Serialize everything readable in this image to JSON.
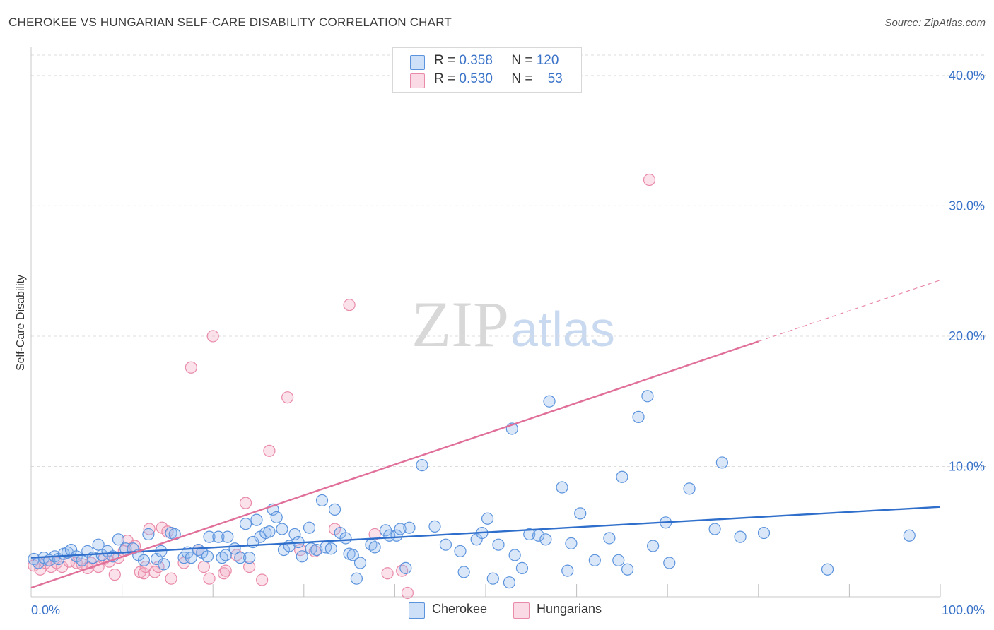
{
  "header": {
    "title": "CHEROKEE VS HUNGARIAN SELF-CARE DISABILITY CORRELATION CHART",
    "source": "Source: ZipAtlas.com"
  },
  "legend_top": {
    "series": [
      {
        "r_label": "R =",
        "r_value": "0.358",
        "n_label": "N =",
        "n_value": "120"
      },
      {
        "r_label": "R =",
        "r_value": "0.530",
        "n_label": "N =",
        "n_value": "53"
      }
    ]
  },
  "legend_bottom": {
    "items": [
      "Cherokee",
      "Hungarians"
    ]
  },
  "colors": {
    "cherokee": "#5b93dd",
    "cherokee_fill": "rgba(147,186,238,0.35)",
    "cherokee_line": "#2f6fcb",
    "hungarians": "#e98aa8",
    "hungarians_fill": "rgba(244,172,196,0.35)",
    "hungarians_line": "#e0709a",
    "axis_text": "#3a73c8",
    "watermark": "ZIPatlas"
  },
  "chart_data": {
    "type": "scatter",
    "title": "CHEROKEE VS HUNGARIAN SELF-CARE DISABILITY CORRELATION CHART",
    "xlabel": "",
    "ylabel": "Self-Care Disability",
    "xlim": [
      0,
      100
    ],
    "ylim": [
      0,
      42
    ],
    "x_tick_labels": [
      "0.0%",
      "100.0%"
    ],
    "y_ticks": [
      10,
      20,
      30,
      40
    ],
    "y_tick_labels": [
      "10.0%",
      "20.0%",
      "30.0%",
      "40.0%"
    ],
    "grid": true,
    "series": [
      {
        "name": "Cherokee",
        "r": 0.358,
        "n": 120,
        "trend": {
          "x0": 0,
          "y0": 3.0,
          "x1": 100,
          "y1": 6.9
        },
        "points": [
          [
            0.3,
            2.9
          ],
          [
            0.8,
            2.6
          ],
          [
            1.4,
            3.0
          ],
          [
            2.0,
            2.8
          ],
          [
            2.6,
            3.1
          ],
          [
            3.0,
            2.9
          ],
          [
            3.6,
            3.3
          ],
          [
            4.0,
            3.4
          ],
          [
            4.4,
            3.6
          ],
          [
            5.0,
            3.1
          ],
          [
            5.6,
            2.8
          ],
          [
            6.2,
            3.5
          ],
          [
            6.8,
            3.0
          ],
          [
            7.4,
            4.0
          ],
          [
            7.8,
            3.2
          ],
          [
            8.4,
            3.5
          ],
          [
            9.0,
            3.1
          ],
          [
            9.6,
            4.4
          ],
          [
            10.4,
            3.7
          ],
          [
            11.2,
            3.7
          ],
          [
            11.8,
            3.2
          ],
          [
            12.4,
            2.8
          ],
          [
            12.9,
            4.8
          ],
          [
            13.8,
            2.9
          ],
          [
            14.3,
            3.5
          ],
          [
            14.6,
            2.5
          ],
          [
            15.4,
            4.9
          ],
          [
            15.8,
            4.8
          ],
          [
            16.8,
            3.0
          ],
          [
            17.2,
            3.4
          ],
          [
            17.6,
            3.0
          ],
          [
            18.4,
            3.6
          ],
          [
            18.8,
            3.4
          ],
          [
            19.4,
            3.1
          ],
          [
            19.6,
            4.6
          ],
          [
            20.6,
            4.6
          ],
          [
            21.0,
            3.0
          ],
          [
            21.4,
            3.2
          ],
          [
            21.6,
            4.6
          ],
          [
            22.4,
            3.7
          ],
          [
            23.0,
            3.0
          ],
          [
            23.6,
            5.6
          ],
          [
            24.0,
            3.0
          ],
          [
            24.4,
            4.2
          ],
          [
            24.8,
            5.9
          ],
          [
            25.2,
            4.6
          ],
          [
            25.8,
            4.9
          ],
          [
            26.2,
            5.0
          ],
          [
            26.6,
            6.7
          ],
          [
            27.0,
            6.1
          ],
          [
            27.6,
            5.2
          ],
          [
            27.8,
            3.6
          ],
          [
            28.4,
            3.9
          ],
          [
            29.0,
            4.8
          ],
          [
            29.4,
            4.2
          ],
          [
            29.8,
            3.1
          ],
          [
            30.6,
            5.3
          ],
          [
            30.8,
            3.7
          ],
          [
            31.4,
            3.6
          ],
          [
            32.0,
            7.4
          ],
          [
            32.4,
            3.8
          ],
          [
            33.0,
            3.7
          ],
          [
            33.4,
            6.7
          ],
          [
            34.0,
            4.9
          ],
          [
            34.6,
            4.5
          ],
          [
            35.0,
            3.3
          ],
          [
            35.4,
            3.2
          ],
          [
            35.8,
            1.4
          ],
          [
            36.2,
            2.6
          ],
          [
            37.4,
            4.0
          ],
          [
            37.8,
            3.8
          ],
          [
            39.0,
            5.1
          ],
          [
            39.4,
            4.7
          ],
          [
            40.2,
            4.7
          ],
          [
            40.6,
            5.2
          ],
          [
            41.2,
            2.2
          ],
          [
            41.6,
            5.3
          ],
          [
            43.0,
            10.1
          ],
          [
            44.4,
            5.4
          ],
          [
            45.6,
            4.0
          ],
          [
            47.2,
            3.5
          ],
          [
            47.6,
            1.9
          ],
          [
            49.0,
            4.4
          ],
          [
            49.6,
            4.9
          ],
          [
            50.2,
            6.0
          ],
          [
            50.8,
            1.4
          ],
          [
            51.4,
            4.0
          ],
          [
            52.6,
            1.1
          ],
          [
            52.9,
            12.9
          ],
          [
            53.2,
            3.2
          ],
          [
            54.0,
            2.2
          ],
          [
            54.8,
            4.8
          ],
          [
            55.8,
            4.7
          ],
          [
            56.6,
            4.4
          ],
          [
            57.0,
            15.0
          ],
          [
            58.4,
            8.4
          ],
          [
            59.0,
            2.0
          ],
          [
            59.4,
            4.1
          ],
          [
            60.4,
            6.4
          ],
          [
            62.0,
            2.8
          ],
          [
            63.6,
            4.5
          ],
          [
            64.6,
            2.8
          ],
          [
            65.0,
            9.2
          ],
          [
            65.6,
            2.1
          ],
          [
            66.8,
            13.8
          ],
          [
            67.8,
            15.4
          ],
          [
            68.4,
            3.9
          ],
          [
            69.8,
            5.7
          ],
          [
            70.2,
            2.6
          ],
          [
            72.4,
            8.3
          ],
          [
            75.2,
            5.2
          ],
          [
            76.0,
            10.3
          ],
          [
            78.0,
            4.6
          ],
          [
            80.6,
            4.9
          ],
          [
            87.6,
            2.1
          ],
          [
            96.6,
            4.7
          ]
        ]
      },
      {
        "name": "Hungarians",
        "r": 0.53,
        "n": 53,
        "trend": {
          "x0": 0,
          "y0": 0.7,
          "x1": 80,
          "y1": 19.6,
          "dash_to_x": 100,
          "dash_to_y": 24.3
        },
        "points": [
          [
            0.3,
            2.4
          ],
          [
            1.0,
            2.1
          ],
          [
            1.6,
            2.6
          ],
          [
            2.2,
            2.3
          ],
          [
            2.8,
            2.6
          ],
          [
            3.4,
            2.3
          ],
          [
            4.2,
            2.7
          ],
          [
            5.0,
            2.6
          ],
          [
            5.6,
            2.5
          ],
          [
            6.2,
            2.2
          ],
          [
            6.6,
            2.6
          ],
          [
            7.4,
            2.3
          ],
          [
            8.0,
            2.9
          ],
          [
            8.6,
            2.7
          ],
          [
            9.2,
            1.7
          ],
          [
            9.6,
            3.0
          ],
          [
            10.2,
            3.5
          ],
          [
            10.6,
            4.3
          ],
          [
            11.4,
            3.9
          ],
          [
            12.0,
            1.9
          ],
          [
            12.4,
            1.8
          ],
          [
            12.6,
            2.3
          ],
          [
            13.0,
            5.2
          ],
          [
            13.6,
            1.9
          ],
          [
            14.0,
            2.3
          ],
          [
            14.4,
            5.3
          ],
          [
            15.0,
            5.0
          ],
          [
            15.4,
            1.4
          ],
          [
            16.8,
            2.6
          ],
          [
            17.6,
            17.6
          ],
          [
            18.4,
            3.6
          ],
          [
            19.0,
            2.3
          ],
          [
            19.6,
            1.4
          ],
          [
            20.0,
            20.0
          ],
          [
            21.2,
            1.8
          ],
          [
            21.4,
            2.0
          ],
          [
            22.6,
            3.2
          ],
          [
            23.6,
            7.2
          ],
          [
            24.0,
            2.3
          ],
          [
            25.4,
            1.3
          ],
          [
            26.2,
            11.2
          ],
          [
            28.2,
            15.3
          ],
          [
            29.6,
            3.6
          ],
          [
            31.2,
            3.5
          ],
          [
            33.4,
            5.2
          ],
          [
            35.0,
            22.4
          ],
          [
            37.8,
            4.8
          ],
          [
            39.2,
            1.8
          ],
          [
            40.8,
            2.0
          ],
          [
            41.4,
            0.3
          ],
          [
            68.0,
            32.0
          ]
        ]
      }
    ]
  }
}
